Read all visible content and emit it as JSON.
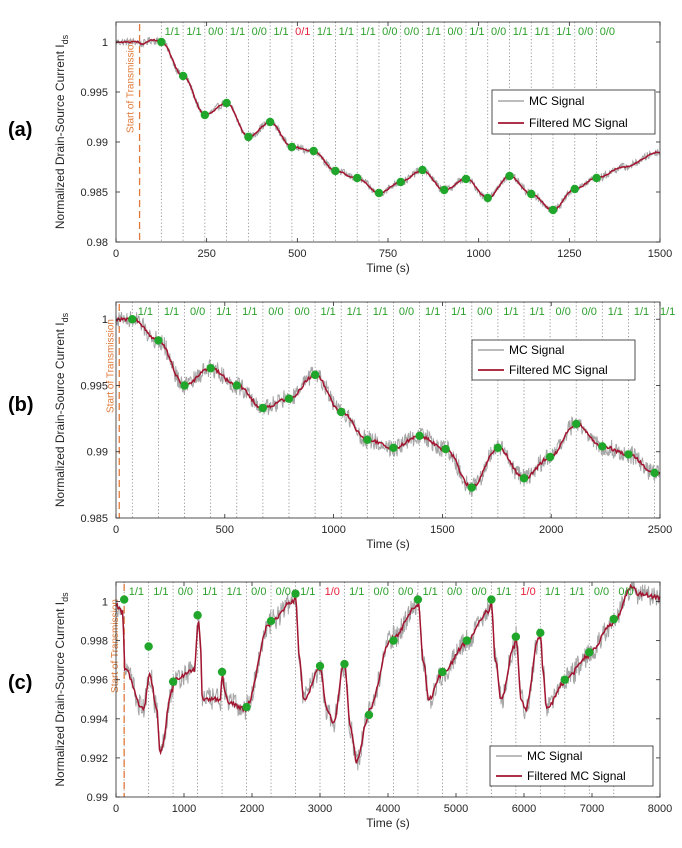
{
  "colors": {
    "raw": "#a6a6a6",
    "filtered": "#a2142f",
    "marker": "#20a62a",
    "label_ok": "#2ca02c",
    "label_err": "#e8213b",
    "start_line": "#e07a3a",
    "grid": "#808080",
    "axis": "#262626"
  },
  "chart_data": [
    {
      "type": "line",
      "panel": "(a)",
      "xlabel": "Time (s)",
      "ylabel": "Normalized Drain-Source Current I",
      "ylabel_sub": "ds",
      "xlim": [
        0,
        1500
      ],
      "ylim": [
        0.98,
        1.002
      ],
      "xticks": [
        0,
        250,
        500,
        750,
        1000,
        1250,
        1500
      ],
      "xtick_labels": [
        "0",
        "250",
        "500",
        "750",
        "1000",
        "1250",
        "1500"
      ],
      "yticks": [
        0.98,
        0.985,
        0.99,
        0.995,
        1
      ],
      "ytick_labels": [
        "0.98",
        "0.985",
        "0.99",
        "0.995",
        "1"
      ],
      "start_of_transmission": 65,
      "start_label": "Start of Transmission",
      "symbol_boundaries": [
        125,
        185,
        245,
        305,
        365,
        425,
        485,
        545,
        605,
        665,
        725,
        785,
        845,
        905,
        965,
        1025,
        1085,
        1145,
        1205,
        1265,
        1325
      ],
      "symbol_labels": [
        "1/1",
        "1/1",
        "0/0",
        "1/1",
        "0/0",
        "1/1",
        "0/1",
        "1/1",
        "1/1",
        "1/1",
        "0/0",
        "0/0",
        "1/1",
        "0/0",
        "1/1",
        "0/0",
        "1/1",
        "1/1",
        "1/1",
        "0/0",
        "0/0"
      ],
      "series": [
        {
          "name": "MC Signal",
          "x": [
            0,
            60,
            70,
            100,
            125,
            185,
            245,
            305,
            365,
            425,
            485,
            545,
            605,
            665,
            725,
            785,
            845,
            905,
            965,
            1025,
            1085,
            1145,
            1205,
            1265,
            1325,
            1400,
            1500
          ],
          "y": [
            1.0,
            1.0,
            0.9998,
            1.0002,
            1.0,
            0.9966,
            0.9927,
            0.9939,
            0.9905,
            0.992,
            0.9895,
            0.9891,
            0.9871,
            0.9864,
            0.9849,
            0.986,
            0.9872,
            0.9852,
            0.9863,
            0.9844,
            0.9866,
            0.9848,
            0.9832,
            0.9853,
            0.9864,
            0.9875,
            0.989
          ],
          "noise_amplitude": 0.0004
        },
        {
          "name": "Filtered MC Signal",
          "x": [
            0,
            60,
            70,
            100,
            125,
            185,
            245,
            305,
            365,
            425,
            485,
            545,
            605,
            665,
            725,
            785,
            845,
            905,
            965,
            1025,
            1085,
            1145,
            1205,
            1265,
            1325,
            1400,
            1500
          ],
          "y": [
            1.0,
            1.0,
            0.9998,
            1.0002,
            1.0,
            0.9966,
            0.9927,
            0.9939,
            0.9905,
            0.992,
            0.9895,
            0.9891,
            0.9871,
            0.9864,
            0.9849,
            0.986,
            0.9872,
            0.9852,
            0.9863,
            0.9844,
            0.9866,
            0.9848,
            0.9832,
            0.9853,
            0.9864,
            0.9875,
            0.989
          ]
        },
        {
          "name": "Sample points",
          "x": [
            125,
            185,
            245,
            305,
            365,
            425,
            485,
            545,
            605,
            665,
            725,
            785,
            845,
            905,
            965,
            1025,
            1085,
            1145,
            1205,
            1265,
            1325
          ],
          "y": [
            1.0,
            0.9966,
            0.9927,
            0.9939,
            0.9905,
            0.992,
            0.9895,
            0.9891,
            0.9871,
            0.9864,
            0.9849,
            0.986,
            0.9872,
            0.9852,
            0.9863,
            0.9844,
            0.9866,
            0.9848,
            0.9832,
            0.9853,
            0.9864
          ]
        }
      ],
      "legend": [
        "MC Signal",
        "Filtered MC Signal"
      ],
      "legend_position": "right"
    },
    {
      "type": "line",
      "panel": "(b)",
      "xlabel": "Time (s)",
      "ylabel": "Normalized Drain-Source Current I",
      "ylabel_sub": "ds",
      "xlim": [
        0,
        2500
      ],
      "ylim": [
        0.985,
        1.0013
      ],
      "xticks": [
        0,
        500,
        1000,
        1500,
        2000,
        2500
      ],
      "xtick_labels": [
        "0",
        "500",
        "1000",
        "1500",
        "2000",
        "2500"
      ],
      "yticks": [
        0.985,
        0.99,
        0.995,
        1
      ],
      "ytick_labels": [
        "0.985",
        "0.99",
        "0.995",
        "1"
      ],
      "start_of_transmission": 15,
      "start_label": "Start of Transmission",
      "symbol_boundaries": [
        75,
        195,
        315,
        435,
        555,
        675,
        795,
        915,
        1035,
        1155,
        1275,
        1395,
        1515,
        1635,
        1755,
        1875,
        1995,
        2115,
        2235,
        2355,
        2475
      ],
      "symbol_labels": [
        "1/1",
        "1/1",
        "0/0",
        "1/1",
        "1/1",
        "0/0",
        "0/0",
        "1/1",
        "1/1",
        "1/1",
        "0/0",
        "1/1",
        "1/1",
        "0/0",
        "1/1",
        "1/1",
        "0/0",
        "0/0",
        "1/1",
        "1/1",
        "1/1"
      ],
      "series": [
        {
          "name": "MC Signal",
          "x": [
            0,
            20,
            75,
            195,
            315,
            435,
            555,
            675,
            795,
            915,
            1035,
            1155,
            1275,
            1395,
            1515,
            1635,
            1755,
            1875,
            1995,
            2115,
            2235,
            2355,
            2475
          ],
          "y": [
            1.0,
            1.0,
            1.0,
            0.9984,
            0.995,
            0.9963,
            0.995,
            0.9933,
            0.994,
            0.9958,
            0.993,
            0.9909,
            0.9903,
            0.9912,
            0.9902,
            0.9873,
            0.9903,
            0.988,
            0.9896,
            0.9921,
            0.9904,
            0.9898,
            0.9884
          ],
          "noise_amplitude": 0.0007
        },
        {
          "name": "Filtered MC Signal",
          "x": [
            0,
            20,
            75,
            195,
            315,
            435,
            555,
            675,
            795,
            915,
            1035,
            1155,
            1275,
            1395,
            1515,
            1635,
            1755,
            1875,
            1995,
            2115,
            2235,
            2355,
            2475
          ],
          "y": [
            1.0,
            1.0,
            1.0,
            0.9984,
            0.995,
            0.9963,
            0.995,
            0.9933,
            0.994,
            0.9958,
            0.993,
            0.9909,
            0.9903,
            0.9912,
            0.9902,
            0.9873,
            0.9903,
            0.988,
            0.9896,
            0.9921,
            0.9904,
            0.9898,
            0.9884
          ]
        },
        {
          "name": "Sample points",
          "x": [
            75,
            195,
            315,
            435,
            555,
            675,
            795,
            915,
            1035,
            1155,
            1275,
            1395,
            1515,
            1635,
            1755,
            1875,
            1995,
            2115,
            2235,
            2355,
            2475
          ],
          "y": [
            1.0,
            0.9984,
            0.995,
            0.9963,
            0.995,
            0.9933,
            0.994,
            0.9958,
            0.993,
            0.9909,
            0.9903,
            0.9912,
            0.9902,
            0.9873,
            0.9903,
            0.988,
            0.9896,
            0.9921,
            0.9904,
            0.9898,
            0.9884
          ]
        }
      ],
      "legend": [
        "MC Signal",
        "Filtered MC Signal"
      ],
      "legend_position": "top-right"
    },
    {
      "type": "line",
      "panel": "(c)",
      "xlabel": "Time (s)",
      "ylabel": "Normalized Drain-Source Current I",
      "ylabel_sub": "ds",
      "xlim": [
        0,
        8000
      ],
      "ylim": [
        0.99,
        1.001
      ],
      "xticks": [
        0,
        1000,
        2000,
        3000,
        4000,
        5000,
        6000,
        7000,
        8000
      ],
      "xtick_labels": [
        "0",
        "1000",
        "2000",
        "3000",
        "4000",
        "5000",
        "6000",
        "7000",
        "8000"
      ],
      "yticks": [
        0.99,
        0.992,
        0.994,
        0.996,
        0.998,
        1
      ],
      "ytick_labels": [
        "0.99",
        "0.992",
        "0.994",
        "0.996",
        "0.998",
        "1"
      ],
      "start_of_transmission": 120,
      "start_label": "Start of Transmission",
      "symbol_boundaries": [
        120,
        480,
        840,
        1200,
        1560,
        1920,
        2280,
        2640,
        3000,
        3360,
        3720,
        4080,
        4440,
        4800,
        5160,
        5520,
        5880,
        6240,
        6600,
        6960,
        7320
      ],
      "symbol_labels": [
        "1/1",
        "1/1",
        "0/0",
        "1/1",
        "1/1",
        "0/0",
        "0/0",
        "1/1",
        "1/0",
        "1/1",
        "0/0",
        "0/0",
        "1/1",
        "0/0",
        "0/0",
        "1/1",
        "1/0",
        "1/1",
        "1/1",
        "0/0",
        "0/0"
      ],
      "series": [
        {
          "name": "MC Signal",
          "x": [
            0,
            100,
            130,
            400,
            500,
            600,
            650,
            830,
            850,
            1150,
            1210,
            1240,
            1270,
            1540,
            1560,
            1600,
            1650,
            1900,
            1920,
            2250,
            2280,
            2600,
            2640,
            2700,
            2760,
            2990,
            3000,
            3100,
            3200,
            3350,
            3360,
            3450,
            3540,
            3700,
            3720,
            4040,
            4080,
            4430,
            4440,
            4520,
            4600,
            4780,
            4800,
            5140,
            5160,
            5480,
            5520,
            5580,
            5660,
            5860,
            5880,
            5960,
            6020,
            6220,
            6240,
            6280,
            6330,
            6580,
            6600,
            6950,
            6960,
            7300,
            7320,
            7600,
            7680,
            8000
          ],
          "y": [
            0.9998,
            0.9995,
            0.9965,
            0.9945,
            0.9962,
            0.9945,
            0.9923,
            0.9955,
            0.996,
            0.9965,
            0.999,
            0.998,
            0.995,
            0.995,
            0.9963,
            0.9955,
            0.9948,
            0.9945,
            0.9947,
            0.9988,
            0.999,
            1.0,
            1.0003,
            0.997,
            0.995,
            0.9965,
            0.9967,
            0.9945,
            0.9938,
            0.9967,
            0.9968,
            0.9935,
            0.9918,
            0.994,
            0.9945,
            0.998,
            0.9982,
            0.9998,
            1.0001,
            0.997,
            0.995,
            0.9962,
            0.9964,
            0.9978,
            0.998,
            0.9995,
            0.9999,
            0.997,
            0.995,
            0.9977,
            0.9982,
            0.995,
            0.9945,
            0.9981,
            0.9984,
            0.9965,
            0.9945,
            0.9958,
            0.996,
            0.9972,
            0.9974,
            0.9988,
            0.999,
            1.0008,
            1.0004,
            1.0002
          ],
          "noise_amplitude": 0.0006
        },
        {
          "name": "Filtered MC Signal",
          "x": [
            0,
            100,
            130,
            400,
            500,
            600,
            650,
            830,
            850,
            1150,
            1210,
            1240,
            1270,
            1540,
            1560,
            1600,
            1650,
            1900,
            1920,
            2250,
            2280,
            2600,
            2640,
            2700,
            2760,
            2990,
            3000,
            3100,
            3200,
            3350,
            3360,
            3450,
            3540,
            3700,
            3720,
            4040,
            4080,
            4430,
            4440,
            4520,
            4600,
            4780,
            4800,
            5140,
            5160,
            5480,
            5520,
            5580,
            5660,
            5860,
            5880,
            5960,
            6020,
            6220,
            6240,
            6280,
            6330,
            6580,
            6600,
            6950,
            6960,
            7300,
            7320,
            7600,
            7680,
            8000
          ],
          "y": [
            0.9998,
            0.9995,
            0.9965,
            0.9945,
            0.9962,
            0.9945,
            0.9923,
            0.9955,
            0.996,
            0.9965,
            0.999,
            0.998,
            0.995,
            0.995,
            0.9963,
            0.9955,
            0.9948,
            0.9945,
            0.9947,
            0.9988,
            0.999,
            1.0,
            1.0003,
            0.997,
            0.995,
            0.9965,
            0.9967,
            0.9945,
            0.9938,
            0.9967,
            0.9968,
            0.9935,
            0.9918,
            0.994,
            0.9945,
            0.998,
            0.9982,
            0.9998,
            1.0001,
            0.997,
            0.995,
            0.9962,
            0.9964,
            0.9978,
            0.998,
            0.9995,
            0.9999,
            0.997,
            0.995,
            0.9977,
            0.9982,
            0.995,
            0.9945,
            0.9981,
            0.9984,
            0.9965,
            0.9945,
            0.9958,
            0.996,
            0.9972,
            0.9974,
            0.9988,
            0.999,
            1.0008,
            1.0004,
            1.0002
          ]
        },
        {
          "name": "Sample points",
          "x": [
            120,
            480,
            840,
            1200,
            1560,
            1920,
            2280,
            2640,
            3000,
            3360,
            3720,
            4080,
            4440,
            4800,
            5160,
            5520,
            5880,
            6240,
            6600,
            6960,
            7320
          ],
          "y": [
            1.0001,
            0.9977,
            0.9959,
            0.9993,
            0.9964,
            0.9946,
            0.999,
            1.0004,
            0.9967,
            0.9968,
            0.9942,
            0.998,
            1.0001,
            0.9964,
            0.998,
            1.0001,
            0.9982,
            0.9984,
            0.996,
            0.9974,
            0.9991
          ]
        }
      ],
      "legend": [
        "MC Signal",
        "Filtered MC Signal"
      ],
      "legend_position": "bottom-right"
    }
  ]
}
